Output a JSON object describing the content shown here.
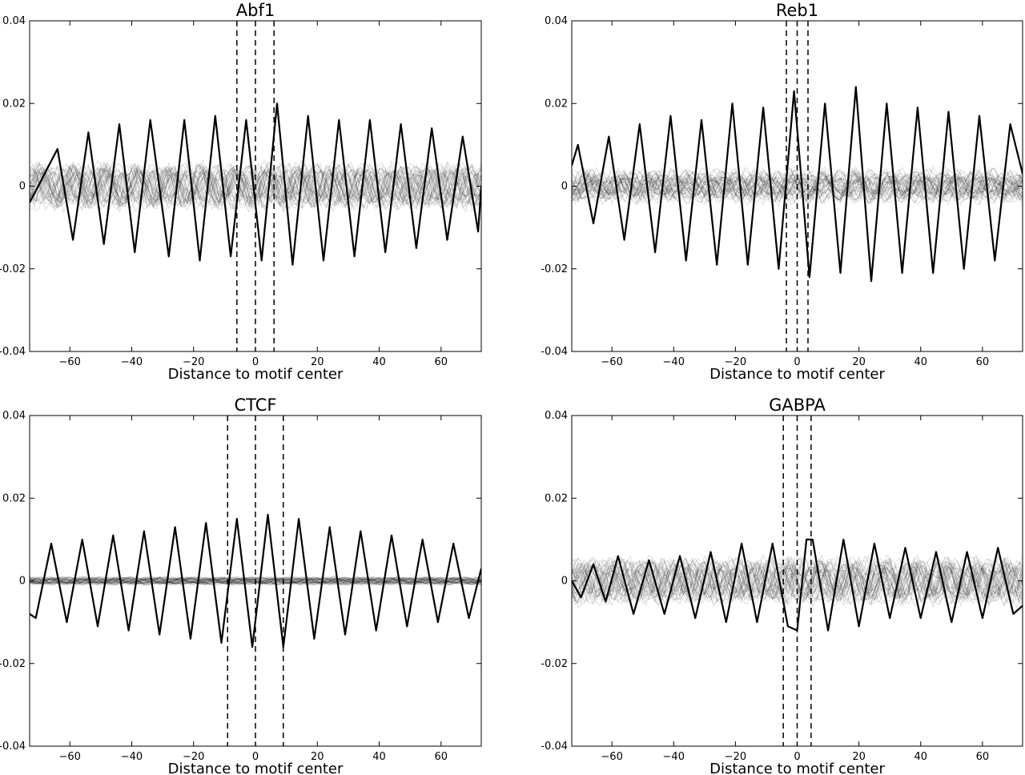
{
  "chart_data": [
    {
      "type": "line",
      "title": "Abf1",
      "xlabel": "Distance to motif center",
      "ylabel": "",
      "xlim": [
        -73,
        73
      ],
      "ylim": [
        -0.04,
        0.04
      ],
      "xticks": [
        -60,
        -40,
        -20,
        0,
        20,
        40,
        60
      ],
      "xtick_labels": [
        "−60",
        "−40",
        "−20",
        "0",
        "20",
        "40",
        "60"
      ],
      "yticks": [
        -0.04,
        -0.02,
        0,
        0.02,
        0.04
      ],
      "ytick_labels": [
        "-0.04",
        "-0.02",
        "0",
        "0.02",
        "0.04"
      ],
      "vlines": [
        -6,
        0,
        6
      ],
      "main_series": {
        "x": [
          -73,
          -64,
          -59,
          -54,
          -49,
          -44,
          -39,
          -34,
          -28,
          -23,
          -18,
          -13,
          -8,
          -3,
          2,
          7,
          12,
          17,
          22,
          27,
          32,
          37,
          42,
          47,
          52,
          57,
          62,
          67,
          72,
          73
        ],
        "y": [
          -0.004,
          0.009,
          -0.013,
          0.013,
          -0.014,
          0.015,
          -0.016,
          0.016,
          -0.017,
          0.016,
          -0.018,
          0.017,
          -0.017,
          0.016,
          -0.018,
          0.02,
          -0.019,
          0.017,
          -0.018,
          0.016,
          -0.017,
          0.016,
          -0.016,
          0.015,
          -0.015,
          0.014,
          -0.013,
          0.012,
          -0.011,
          0.0
        ]
      },
      "background": {
        "count": 40,
        "amplitude": 0.0045
      }
    },
    {
      "type": "line",
      "title": "Reb1",
      "xlabel": "Distance to motif center",
      "ylabel": "",
      "xlim": [
        -73,
        73
      ],
      "ylim": [
        -0.04,
        0.04
      ],
      "xticks": [
        -60,
        -40,
        -20,
        0,
        20,
        40,
        60
      ],
      "xtick_labels": [
        "−60",
        "−40",
        "−20",
        "0",
        "20",
        "40",
        "60"
      ],
      "yticks": [
        -0.04,
        -0.02,
        0,
        0.02,
        0.04
      ],
      "ytick_labels": [
        "-0.04",
        "-0.02",
        "0",
        "0.02",
        "0.04"
      ],
      "vlines": [
        -3.5,
        0,
        3.5
      ],
      "main_series": {
        "x": [
          -73,
          -71,
          -66,
          -61,
          -56,
          -51,
          -46,
          -41,
          -36,
          -31,
          -26,
          -21,
          -16,
          -11,
          -6,
          -1,
          4,
          9,
          14,
          19,
          24,
          29,
          34,
          39,
          44,
          49,
          54,
          59,
          64,
          69,
          73
        ],
        "y": [
          0.005,
          0.01,
          -0.009,
          0.012,
          -0.013,
          0.015,
          -0.016,
          0.017,
          -0.018,
          0.016,
          -0.019,
          0.02,
          -0.019,
          0.019,
          -0.02,
          0.023,
          -0.022,
          0.02,
          -0.021,
          0.024,
          -0.023,
          0.02,
          -0.021,
          0.019,
          -0.021,
          0.018,
          -0.02,
          0.017,
          -0.018,
          0.015,
          0.003
        ]
      },
      "background": {
        "count": 40,
        "amplitude": 0.0035
      }
    },
    {
      "type": "line",
      "title": "CTCF",
      "xlabel": "Distance to motif center",
      "ylabel": "",
      "xlim": [
        -73,
        73
      ],
      "ylim": [
        -0.04,
        0.04
      ],
      "xticks": [
        -60,
        -40,
        -20,
        0,
        20,
        40,
        60
      ],
      "xtick_labels": [
        "−60",
        "−40",
        "−20",
        "0",
        "20",
        "40",
        "60"
      ],
      "yticks": [
        -0.04,
        -0.02,
        0,
        0.02,
        0.04
      ],
      "ytick_labels": [
        "-0.04",
        "-0.02",
        "0",
        "0.02",
        "0.04"
      ],
      "vlines": [
        -9,
        0,
        9
      ],
      "main_series": {
        "x": [
          -73,
          -71,
          -66,
          -61,
          -56,
          -51,
          -46,
          -41,
          -36,
          -31,
          -26,
          -21,
          -16,
          -11,
          -6,
          -1,
          4,
          9,
          14,
          19,
          24,
          29,
          34,
          39,
          44,
          49,
          54,
          59,
          64,
          69,
          73
        ],
        "y": [
          -0.008,
          -0.009,
          0.009,
          -0.01,
          0.01,
          -0.011,
          0.011,
          -0.012,
          0.012,
          -0.013,
          0.013,
          -0.014,
          0.014,
          -0.015,
          0.015,
          -0.016,
          0.016,
          -0.016,
          0.015,
          -0.014,
          0.013,
          -0.013,
          0.012,
          -0.012,
          0.011,
          -0.011,
          0.01,
          -0.01,
          0.009,
          -0.009,
          0.003
        ]
      },
      "background": {
        "count": 40,
        "amplitude": 0.0008
      }
    },
    {
      "type": "line",
      "title": "GABPA",
      "xlabel": "Distance to motif center",
      "ylabel": "",
      "xlim": [
        -73,
        73
      ],
      "ylim": [
        -0.04,
        0.04
      ],
      "xticks": [
        -60,
        -40,
        -20,
        0,
        20,
        40,
        60
      ],
      "xtick_labels": [
        "−60",
        "−40",
        "−20",
        "0",
        "20",
        "40",
        "60"
      ],
      "yticks": [
        -0.04,
        -0.02,
        0,
        0.02,
        0.04
      ],
      "ytick_labels": [
        "-0.04",
        "-0.02",
        "0",
        "0.02",
        "0.04"
      ],
      "vlines": [
        -4.5,
        0,
        4.5
      ],
      "main_series": {
        "x": [
          -73,
          -70,
          -66,
          -62,
          -58,
          -53,
          -48,
          -43,
          -38,
          -33,
          -28,
          -23,
          -18,
          -13,
          -8,
          -3,
          0,
          3,
          5,
          10,
          15,
          20,
          25,
          30,
          35,
          40,
          45,
          50,
          55,
          60,
          65,
          70,
          73
        ],
        "y": [
          0.0,
          -0.004,
          0.004,
          -0.005,
          0.006,
          -0.008,
          0.005,
          -0.008,
          0.006,
          -0.009,
          0.007,
          -0.01,
          0.009,
          -0.01,
          0.009,
          -0.011,
          -0.012,
          0.01,
          0.01,
          -0.012,
          0.01,
          -0.011,
          0.009,
          -0.009,
          0.008,
          -0.009,
          0.007,
          -0.01,
          0.007,
          -0.009,
          0.008,
          -0.008,
          -0.006
        ]
      },
      "background": {
        "count": 40,
        "amplitude": 0.0045
      }
    }
  ]
}
